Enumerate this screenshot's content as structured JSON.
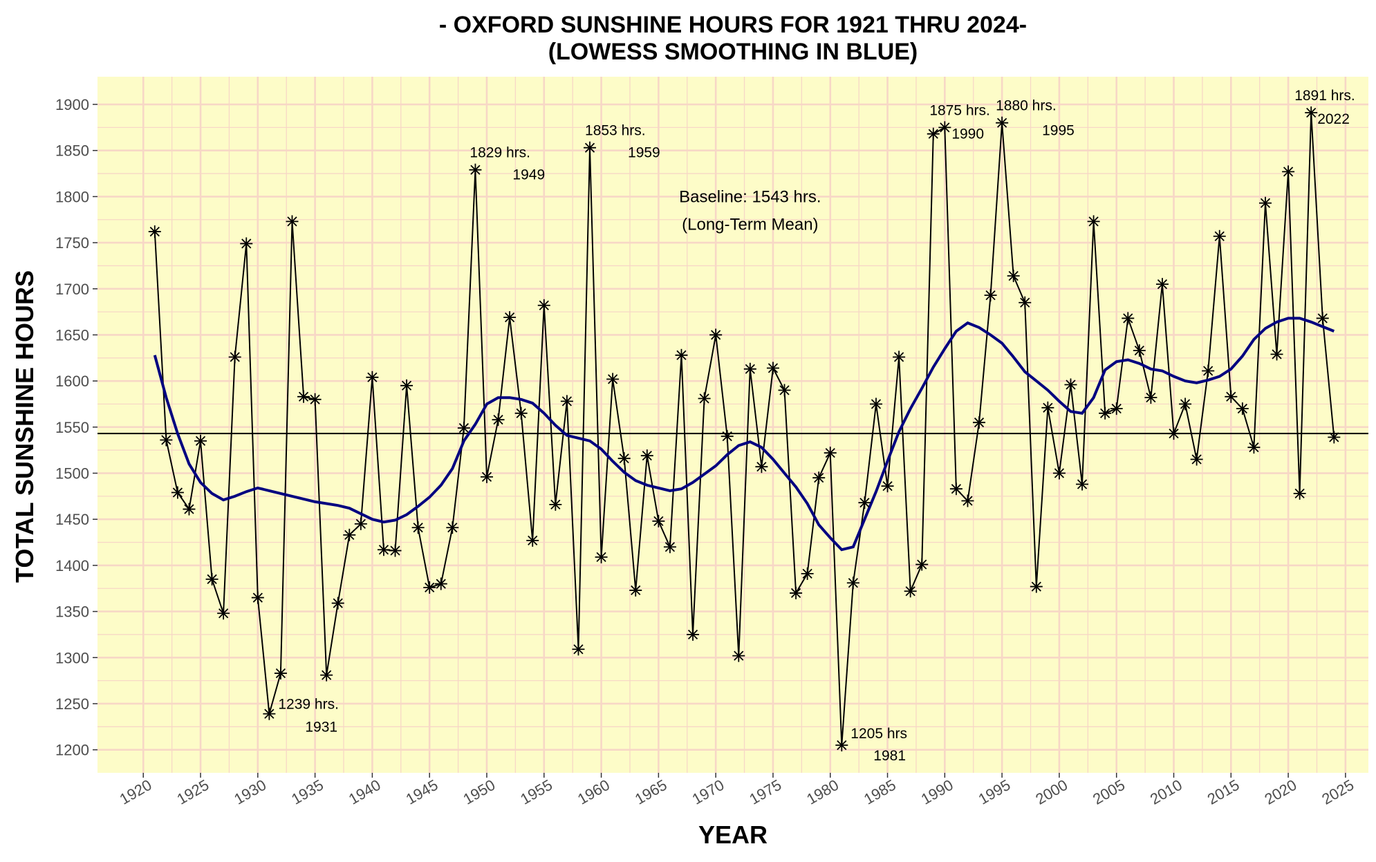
{
  "chart_data": {
    "type": "line",
    "title_line1": "- OXFORD SUNSHINE HOURS FOR 1921 THRU 2024-",
    "title_line2": "(LOWESS SMOOTHING IN BLUE)",
    "xlabel": "YEAR",
    "ylabel": "TOTAL SUNSHINE HOURS",
    "xlim": [
      1916,
      2027
    ],
    "ylim": [
      1175,
      1930
    ],
    "x_ticks": [
      1920,
      1925,
      1930,
      1935,
      1940,
      1945,
      1950,
      1955,
      1960,
      1965,
      1970,
      1975,
      1980,
      1985,
      1990,
      1995,
      2000,
      2005,
      2010,
      2015,
      2020,
      2025
    ],
    "y_ticks": [
      1200,
      1250,
      1300,
      1350,
      1400,
      1450,
      1500,
      1550,
      1600,
      1650,
      1700,
      1750,
      1800,
      1850,
      1900
    ],
    "panel_background": "#fdfcc8",
    "grid_color": "#f7d7c6",
    "series_color": "#000000",
    "smooth_color": "#000080",
    "baseline": {
      "value": 1543,
      "label_line1": "Baseline: 1543 hrs.",
      "label_line2": "(Long-Term Mean)"
    },
    "series": [
      {
        "name": "Total sunshine hours",
        "x": [
          1921,
          1922,
          1923,
          1924,
          1925,
          1926,
          1927,
          1928,
          1929,
          1930,
          1931,
          1932,
          1933,
          1934,
          1935,
          1936,
          1937,
          1938,
          1939,
          1940,
          1941,
          1942,
          1943,
          1944,
          1945,
          1946,
          1947,
          1948,
          1949,
          1950,
          1951,
          1952,
          1953,
          1954,
          1955,
          1956,
          1957,
          1958,
          1959,
          1960,
          1961,
          1962,
          1963,
          1964,
          1965,
          1966,
          1967,
          1968,
          1969,
          1970,
          1971,
          1972,
          1973,
          1974,
          1975,
          1976,
          1977,
          1978,
          1979,
          1980,
          1981,
          1982,
          1983,
          1984,
          1985,
          1986,
          1987,
          1988,
          1989,
          1990,
          1991,
          1992,
          1993,
          1994,
          1995,
          1996,
          1997,
          1998,
          1999,
          2000,
          2001,
          2002,
          2003,
          2004,
          2005,
          2006,
          2007,
          2008,
          2009,
          2010,
          2011,
          2012,
          2013,
          2014,
          2015,
          2016,
          2017,
          2018,
          2019,
          2020,
          2021,
          2022,
          2023,
          2024
        ],
        "values": [
          1762,
          1536,
          1479,
          1461,
          1535,
          1385,
          1348,
          1626,
          1749,
          1365,
          1239,
          1283,
          1773,
          1583,
          1580,
          1281,
          1359,
          1433,
          1445,
          1604,
          1417,
          1416,
          1595,
          1441,
          1376,
          1380,
          1441,
          1549,
          1829,
          1496,
          1558,
          1669,
          1565,
          1427,
          1682,
          1466,
          1578,
          1309,
          1853,
          1409,
          1602,
          1516,
          1373,
          1519,
          1448,
          1420,
          1628,
          1325,
          1581,
          1650,
          1540,
          1302,
          1613,
          1507,
          1614,
          1590,
          1370,
          1391,
          1495,
          1522,
          1205,
          1381,
          1468,
          1575,
          1486,
          1626,
          1372,
          1401,
          1868,
          1875,
          1483,
          1470,
          1555,
          1693,
          1880,
          1714,
          1685,
          1377,
          1571,
          1500,
          1596,
          1488,
          1773,
          1565,
          1570,
          1668,
          1633,
          1582,
          1705,
          1543,
          1575,
          1515,
          1611,
          1757,
          1583,
          1570,
          1528,
          1793,
          1629,
          1827,
          1478,
          1891,
          1668,
          1539
        ]
      },
      {
        "name": "LOWESS smoothing",
        "x": [
          1921,
          1922,
          1923,
          1924,
          1925,
          1926,
          1927,
          1928,
          1929,
          1930,
          1931,
          1932,
          1933,
          1934,
          1935,
          1936,
          1937,
          1938,
          1939,
          1940,
          1941,
          1942,
          1943,
          1944,
          1945,
          1946,
          1947,
          1948,
          1949,
          1950,
          1951,
          1952,
          1953,
          1954,
          1955,
          1956,
          1957,
          1958,
          1959,
          1960,
          1961,
          1962,
          1963,
          1964,
          1965,
          1966,
          1967,
          1968,
          1969,
          1970,
          1971,
          1972,
          1973,
          1974,
          1975,
          1976,
          1977,
          1978,
          1979,
          1980,
          1981,
          1982,
          1983,
          1984,
          1985,
          1986,
          1987,
          1988,
          1989,
          1990,
          1991,
          1992,
          1993,
          1994,
          1995,
          1996,
          1997,
          1998,
          1999,
          2000,
          2001,
          2002,
          2003,
          2004,
          2005,
          2006,
          2007,
          2008,
          2009,
          2010,
          2011,
          2012,
          2013,
          2014,
          2015,
          2016,
          2017,
          2018,
          2019,
          2020,
          2021,
          2022,
          2023,
          2024
        ],
        "values": [
          1628,
          1582,
          1543,
          1510,
          1490,
          1478,
          1471,
          1475,
          1480,
          1484,
          1481,
          1478,
          1475,
          1472,
          1469,
          1467,
          1465,
          1462,
          1456,
          1450,
          1447,
          1449,
          1455,
          1464,
          1474,
          1487,
          1505,
          1535,
          1553,
          1575,
          1582,
          1582,
          1580,
          1576,
          1565,
          1552,
          1541,
          1538,
          1535,
          1526,
          1513,
          1501,
          1492,
          1487,
          1484,
          1481,
          1483,
          1490,
          1499,
          1508,
          1520,
          1530,
          1534,
          1528,
          1515,
          1500,
          1485,
          1467,
          1444,
          1430,
          1417,
          1420,
          1450,
          1480,
          1513,
          1545,
          1570,
          1592,
          1615,
          1635,
          1654,
          1663,
          1658,
          1650,
          1641,
          1626,
          1610,
          1600,
          1590,
          1578,
          1567,
          1565,
          1582,
          1612,
          1621,
          1623,
          1619,
          1613,
          1611,
          1605,
          1600,
          1598,
          1601,
          1605,
          1613,
          1627,
          1645,
          1657,
          1664,
          1668,
          1668,
          1664,
          1659,
          1654
        ]
      }
    ],
    "annotations": [
      {
        "year": 1931,
        "line1": "1239 hrs.",
        "line2": "1931"
      },
      {
        "year": 1949,
        "line1": "1829 hrs.",
        "line2": "1949"
      },
      {
        "year": 1959,
        "line1": "1853 hrs.",
        "line2": "1959"
      },
      {
        "year": 1981,
        "line1": "1205 hrs",
        "line2": "1981"
      },
      {
        "year": 1990,
        "line1": "1875 hrs.",
        "line2": "1990"
      },
      {
        "year": 1995,
        "line1": "1880 hrs.",
        "line2": "1995"
      },
      {
        "year": 2022,
        "line1": "1891 hrs.",
        "line2": "2022"
      }
    ]
  }
}
